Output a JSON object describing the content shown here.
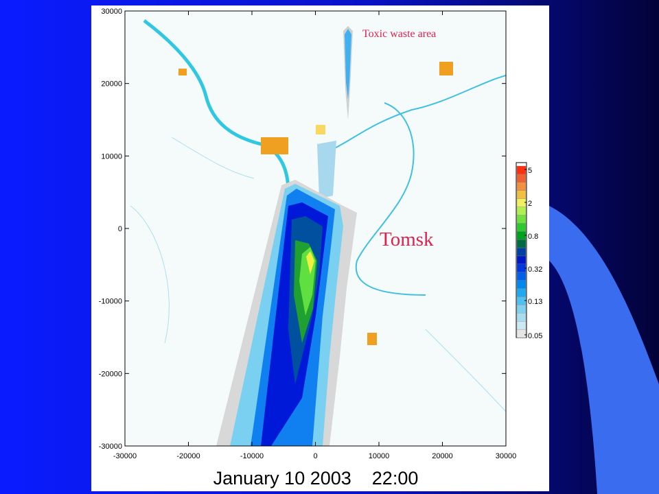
{
  "chart_data": {
    "type": "map",
    "title": "January 10 2003    22:00",
    "xlim": [
      -30000,
      30000
    ],
    "ylim": [
      -30000,
      30000
    ],
    "xticks": [
      -30000,
      -20000,
      -10000,
      0,
      10000,
      20000,
      30000
    ],
    "yticks": [
      -30000,
      -20000,
      -10000,
      0,
      10000,
      20000,
      30000
    ],
    "colorbar": {
      "scale": "log",
      "lim": [
        0.05,
        5
      ],
      "ticks": [
        5,
        2,
        0.8,
        0.32,
        0.13,
        0.05
      ]
    },
    "annotations": [
      "Toxic waste area",
      "Tomsk"
    ]
  }
}
